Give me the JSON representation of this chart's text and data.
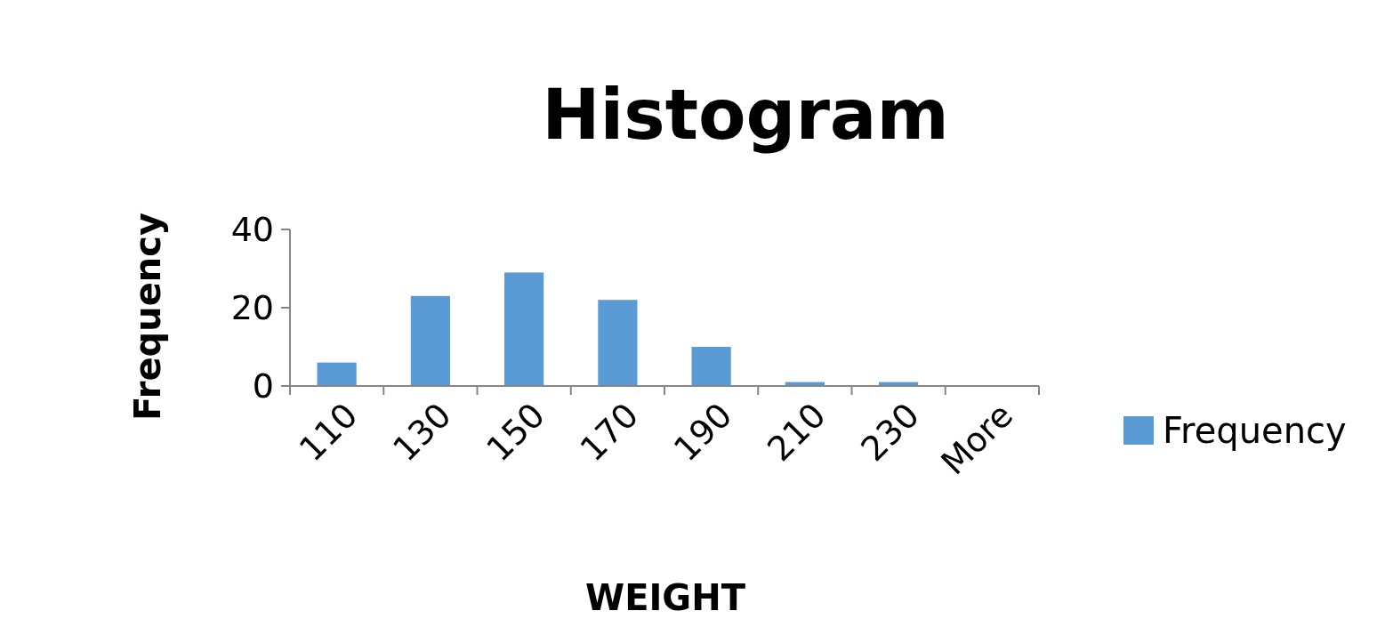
{
  "chart_data": {
    "type": "bar",
    "title": "Histogram",
    "xlabel": "WEIGHT",
    "ylabel": "Frequency",
    "categories": [
      "110",
      "130",
      "150",
      "170",
      "190",
      "210",
      "230",
      "More"
    ],
    "series": [
      {
        "name": "Frequency",
        "color": "#5b9bd5",
        "values": [
          6,
          23,
          29,
          22,
          10,
          1,
          1,
          0
        ]
      }
    ],
    "ylim": [
      0,
      40
    ],
    "yticks": [
      0,
      20,
      40
    ],
    "legend": "right"
  }
}
